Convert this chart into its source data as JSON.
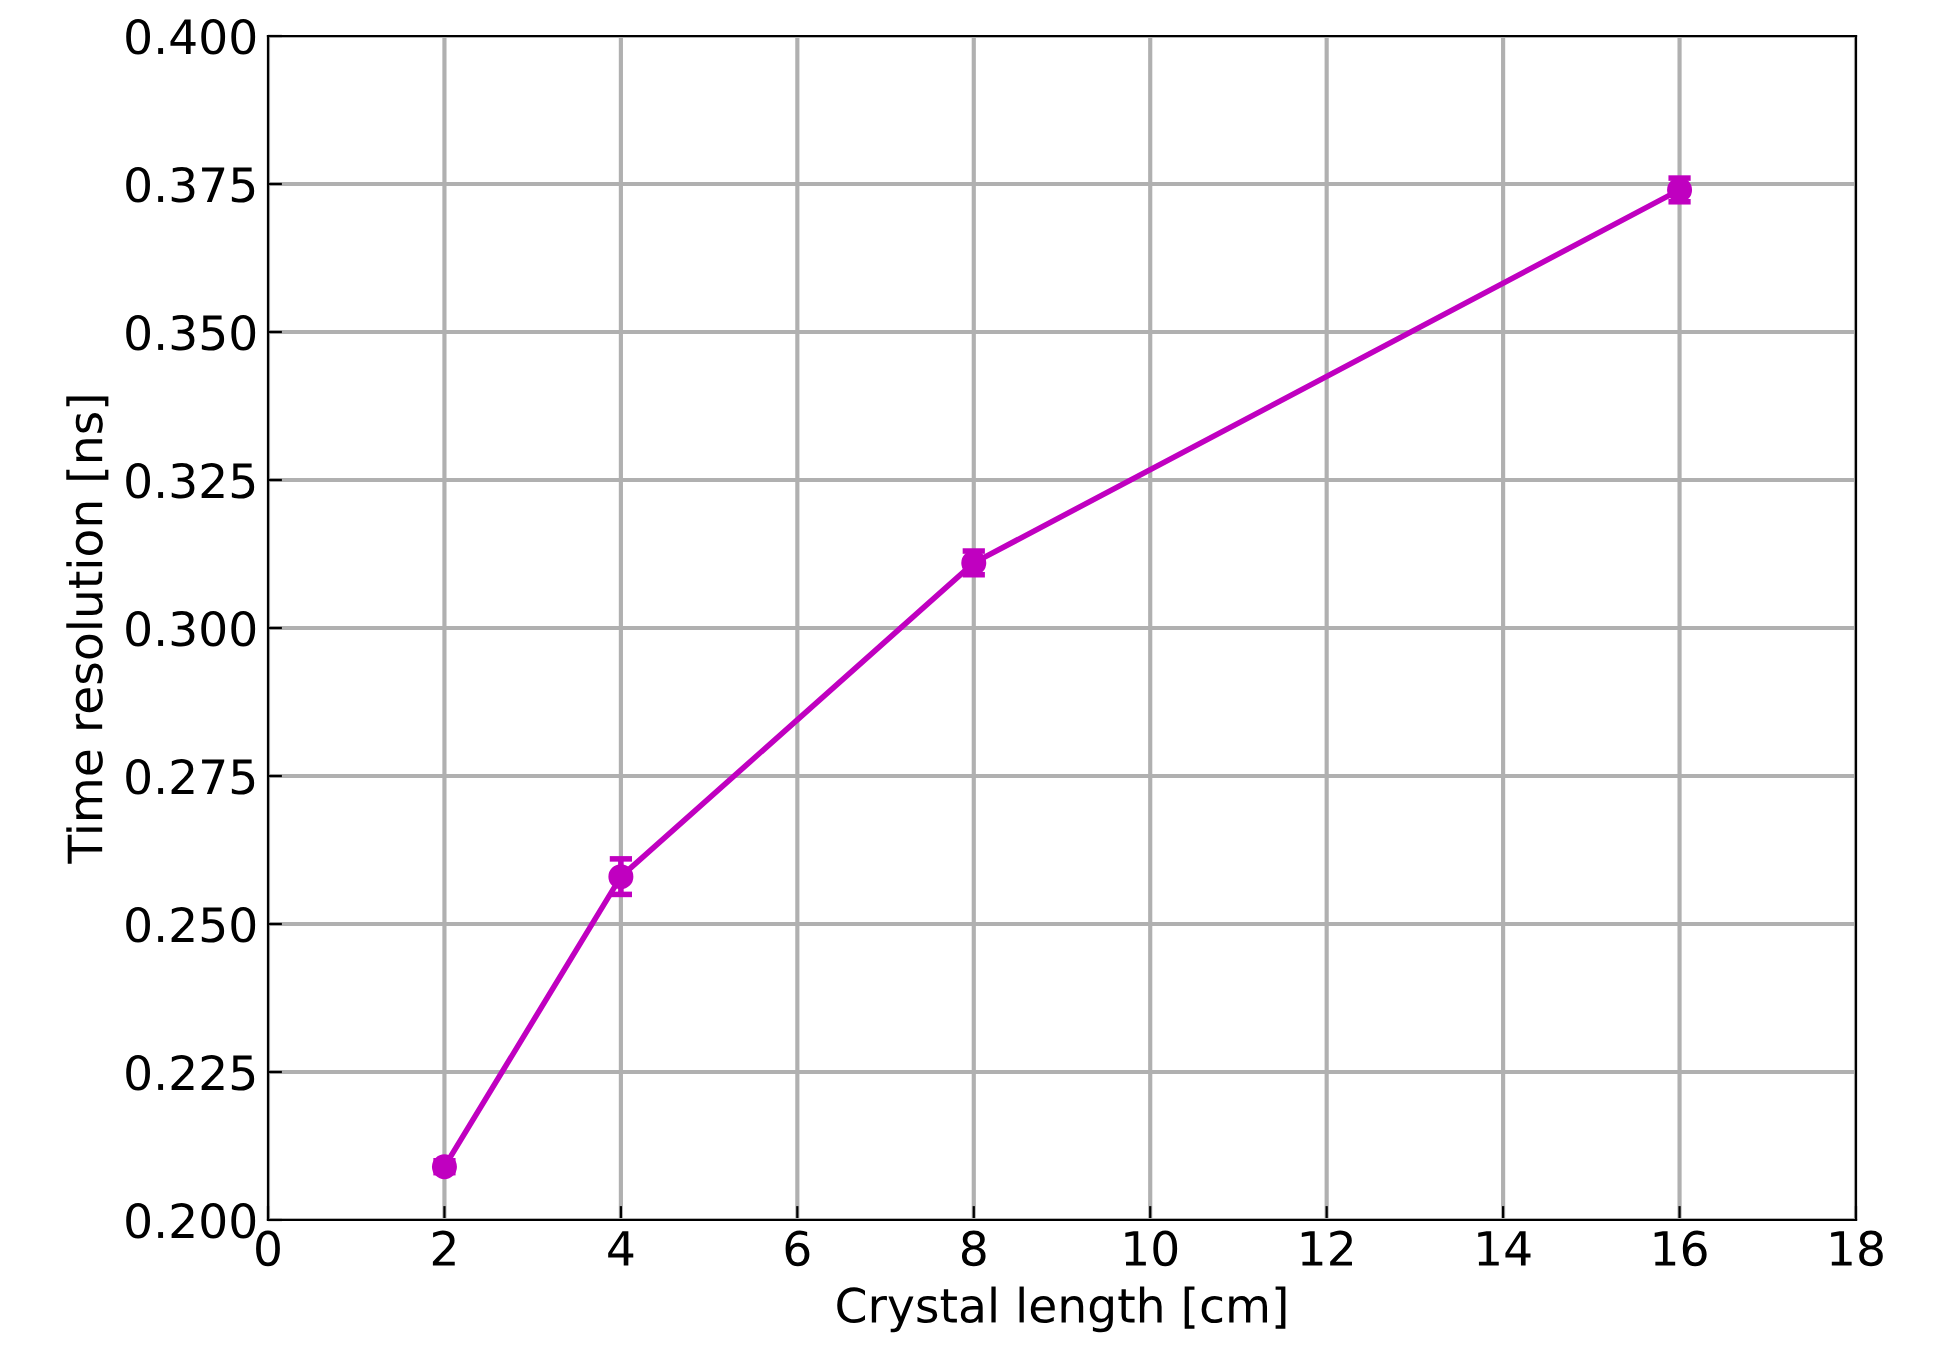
{
  "chart_data": {
    "type": "line",
    "xlabel": "Crystal length [cm]",
    "ylabel": "Time resolution [ns]",
    "x": [
      2,
      4,
      8,
      16
    ],
    "series": [
      {
        "color": "#c000c0",
        "values": [
          0.209,
          0.258,
          0.311,
          0.374
        ],
        "errors": [
          0.001,
          0.003,
          0.002,
          0.002
        ]
      }
    ],
    "xlim": [
      0,
      18
    ],
    "xticks": [
      0,
      2,
      4,
      6,
      8,
      10,
      12,
      14,
      16,
      18
    ],
    "ylim": [
      0.2,
      0.4
    ],
    "yticks": [
      {
        "value": 0.2,
        "label": "0.200"
      },
      {
        "value": 0.225,
        "label": "0.225"
      },
      {
        "value": 0.25,
        "label": "0.250"
      },
      {
        "value": 0.275,
        "label": "0.275"
      },
      {
        "value": 0.3,
        "label": "0.300"
      },
      {
        "value": 0.325,
        "label": "0.325"
      },
      {
        "value": 0.35,
        "label": "0.350"
      },
      {
        "value": 0.375,
        "label": "0.375"
      },
      {
        "value": 0.4,
        "label": "0.400"
      }
    ],
    "grid": true,
    "marker": "circle",
    "line_style": "solid"
  }
}
